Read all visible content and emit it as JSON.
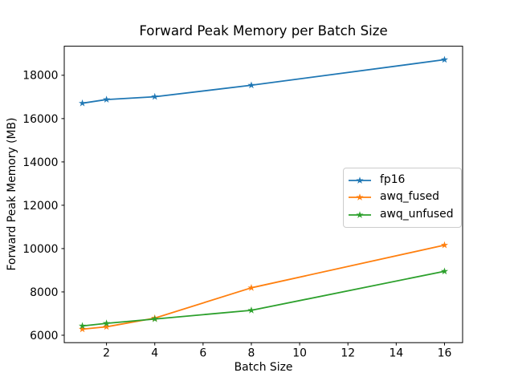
{
  "figure": {
    "background": "#ffffff",
    "text_color": "#000000",
    "spine_color": "#000000",
    "legend_border_color": "#cccccc"
  },
  "chart_data": {
    "type": "line",
    "title": "Forward Peak Memory per Batch Size",
    "xlabel": "Batch Size",
    "ylabel": "Forward Peak Memory (MB)",
    "x": [
      1,
      2,
      4,
      8,
      16
    ],
    "series": [
      {
        "name": "fp16",
        "color": "#1f77b4",
        "values": [
          16710,
          16880,
          17010,
          17540,
          18720
        ]
      },
      {
        "name": "awq_fused",
        "color": "#ff7f0e",
        "values": [
          6280,
          6390,
          6790,
          8190,
          10160
        ]
      },
      {
        "name": "awq_unfused",
        "color": "#2ca02c",
        "values": [
          6430,
          6550,
          6750,
          7150,
          8950
        ]
      }
    ],
    "xticks": [
      2,
      4,
      6,
      8,
      10,
      12,
      14,
      16
    ],
    "yticks": [
      6000,
      8000,
      10000,
      12000,
      14000,
      16000,
      18000
    ],
    "xlim": [
      0.25,
      16.75
    ],
    "ylim": [
      5658,
      19342
    ],
    "marker": "star",
    "grid": false,
    "legend_position": "center-right"
  }
}
